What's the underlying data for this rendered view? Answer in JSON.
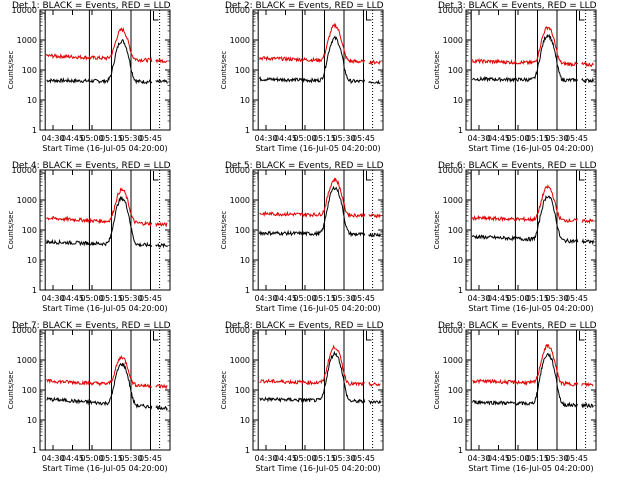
{
  "chart_data": [
    {
      "type": "line",
      "title": "Det 1: BLACK = Events, RED = LLD",
      "xlabel": "Start Time (16-Jul-05 04:20:00)",
      "ylabel": "Counts/sec",
      "yscale": "log",
      "ylim": [
        1,
        10000
      ],
      "y_tick_labels": [
        "1",
        "10",
        "100",
        "1000",
        "10000"
      ],
      "x_tick_labels": [
        "04:30",
        "04:45",
        "05:00",
        "05:15",
        "05:30",
        "05:45"
      ],
      "series": [
        {
          "name": "BLACK",
          "color": "#000000",
          "peak": 900,
          "base_start": 45,
          "base_end": 40
        },
        {
          "name": "RED",
          "color": "#e00000",
          "peak": 2000,
          "base_start": 300,
          "base_end": 200
        }
      ]
    },
    {
      "type": "line",
      "title": "Det 2: BLACK = Events, RED = LLD",
      "xlabel": "Start Time (16-Jul-05 04:20:00)",
      "ylabel": "Counts/sec",
      "yscale": "log",
      "ylim": [
        1,
        10000
      ],
      "y_tick_labels": [
        "1",
        "10",
        "100",
        "1000",
        "10000"
      ],
      "x_tick_labels": [
        "04:30",
        "04:45",
        "05:00",
        "05:15",
        "05:30",
        "05:45"
      ],
      "series": [
        {
          "name": "BLACK",
          "color": "#000000",
          "peak": 1100,
          "base_start": 50,
          "base_end": 40
        },
        {
          "name": "RED",
          "color": "#e00000",
          "peak": 2800,
          "base_start": 250,
          "base_end": 180
        }
      ]
    },
    {
      "type": "line",
      "title": "Det 3: BLACK = Events, RED = LLD",
      "xlabel": "Start Time (16-Jul-05 04:20:00)",
      "ylabel": "Counts/sec",
      "yscale": "log",
      "ylim": [
        1,
        10000
      ],
      "y_tick_labels": [
        "1",
        "10",
        "100",
        "1000",
        "10000"
      ],
      "x_tick_labels": [
        "04:30",
        "04:45",
        "05:00",
        "05:15",
        "05:30",
        "05:45"
      ],
      "series": [
        {
          "name": "BLACK",
          "color": "#000000",
          "peak": 1400,
          "base_start": 50,
          "base_end": 45
        },
        {
          "name": "RED",
          "color": "#e00000",
          "peak": 2500,
          "base_start": 200,
          "base_end": 150
        }
      ]
    },
    {
      "type": "line",
      "title": "Det 4: BLACK = Events, RED = LLD",
      "xlabel": "Start Time (16-Jul-05 04:20:00)",
      "ylabel": "Counts/sec",
      "yscale": "log",
      "ylim": [
        1,
        10000
      ],
      "y_tick_labels": [
        "1",
        "10",
        "100",
        "1000",
        "10000"
      ],
      "x_tick_labels": [
        "04:30",
        "04:45",
        "05:00",
        "05:15",
        "05:30",
        "05:45"
      ],
      "series": [
        {
          "name": "BLACK",
          "color": "#000000",
          "peak": 1100,
          "base_start": 40,
          "base_end": 30
        },
        {
          "name": "RED",
          "color": "#e00000",
          "peak": 2000,
          "base_start": 250,
          "base_end": 150
        }
      ]
    },
    {
      "type": "line",
      "title": "Det 5: BLACK = Events, RED = LLD",
      "xlabel": "Start Time (16-Jul-05 04:20:00)",
      "ylabel": "Counts/sec",
      "yscale": "log",
      "ylim": [
        1,
        10000
      ],
      "y_tick_labels": [
        "1",
        "10",
        "100",
        "1000",
        "10000"
      ],
      "x_tick_labels": [
        "04:30",
        "04:45",
        "05:00",
        "05:15",
        "05:30",
        "05:45"
      ],
      "series": [
        {
          "name": "BLACK",
          "color": "#000000",
          "peak": 2500,
          "base_start": 80,
          "base_end": 70
        },
        {
          "name": "RED",
          "color": "#e00000",
          "peak": 4500,
          "base_start": 350,
          "base_end": 300
        }
      ]
    },
    {
      "type": "line",
      "title": "Det 6: BLACK = Events, RED = LLD",
      "xlabel": "Start Time (16-Jul-05 04:20:00)",
      "ylabel": "Counts/sec",
      "yscale": "log",
      "ylim": [
        1,
        10000
      ],
      "y_tick_labels": [
        "1",
        "10",
        "100",
        "1000",
        "10000"
      ],
      "x_tick_labels": [
        "04:30",
        "04:45",
        "05:00",
        "05:15",
        "05:30",
        "05:45"
      ],
      "series": [
        {
          "name": "BLACK",
          "color": "#000000",
          "peak": 1300,
          "base_start": 60,
          "base_end": 40
        },
        {
          "name": "RED",
          "color": "#e00000",
          "peak": 2500,
          "base_start": 250,
          "base_end": 200
        }
      ]
    },
    {
      "type": "line",
      "title": "Det 7: BLACK = Events, RED = LLD",
      "xlabel": "Start Time (16-Jul-05 04:20:00)",
      "ylabel": "Counts/sec",
      "yscale": "log",
      "ylim": [
        1,
        10000
      ],
      "y_tick_labels": [
        "1",
        "10",
        "100",
        "1000",
        "10000"
      ],
      "x_tick_labels": [
        "04:30",
        "04:45",
        "05:00",
        "05:15",
        "05:30",
        "05:45"
      ],
      "series": [
        {
          "name": "BLACK",
          "color": "#000000",
          "peak": 700,
          "base_start": 50,
          "base_end": 25
        },
        {
          "name": "RED",
          "color": "#e00000",
          "peak": 1100,
          "base_start": 200,
          "base_end": 130
        }
      ]
    },
    {
      "type": "line",
      "title": "Det 8: BLACK = Events, RED = LLD",
      "xlabel": "Start Time (16-Jul-05 04:20:00)",
      "ylabel": "Counts/sec",
      "yscale": "log",
      "ylim": [
        1,
        10000
      ],
      "y_tick_labels": [
        "1",
        "10",
        "100",
        "1000",
        "10000"
      ],
      "x_tick_labels": [
        "04:30",
        "04:45",
        "05:00",
        "05:15",
        "05:30",
        "05:45"
      ],
      "series": [
        {
          "name": "BLACK",
          "color": "#000000",
          "peak": 1600,
          "base_start": 50,
          "base_end": 40
        },
        {
          "name": "RED",
          "color": "#e00000",
          "peak": 2500,
          "base_start": 200,
          "base_end": 150
        }
      ]
    },
    {
      "type": "line",
      "title": "Det 9: BLACK = Events, RED = LLD",
      "xlabel": "Start Time (16-Jul-05 04:20:00)",
      "ylabel": "Counts/sec",
      "yscale": "log",
      "ylim": [
        1,
        10000
      ],
      "y_tick_labels": [
        "1",
        "10",
        "100",
        "1000",
        "10000"
      ],
      "x_tick_labels": [
        "04:30",
        "04:45",
        "05:00",
        "05:15",
        "05:30",
        "05:45"
      ],
      "series": [
        {
          "name": "BLACK",
          "color": "#000000",
          "peak": 1500,
          "base_start": 40,
          "base_end": 30
        },
        {
          "name": "RED",
          "color": "#e00000",
          "peak": 2800,
          "base_start": 200,
          "base_end": 150
        }
      ]
    }
  ]
}
